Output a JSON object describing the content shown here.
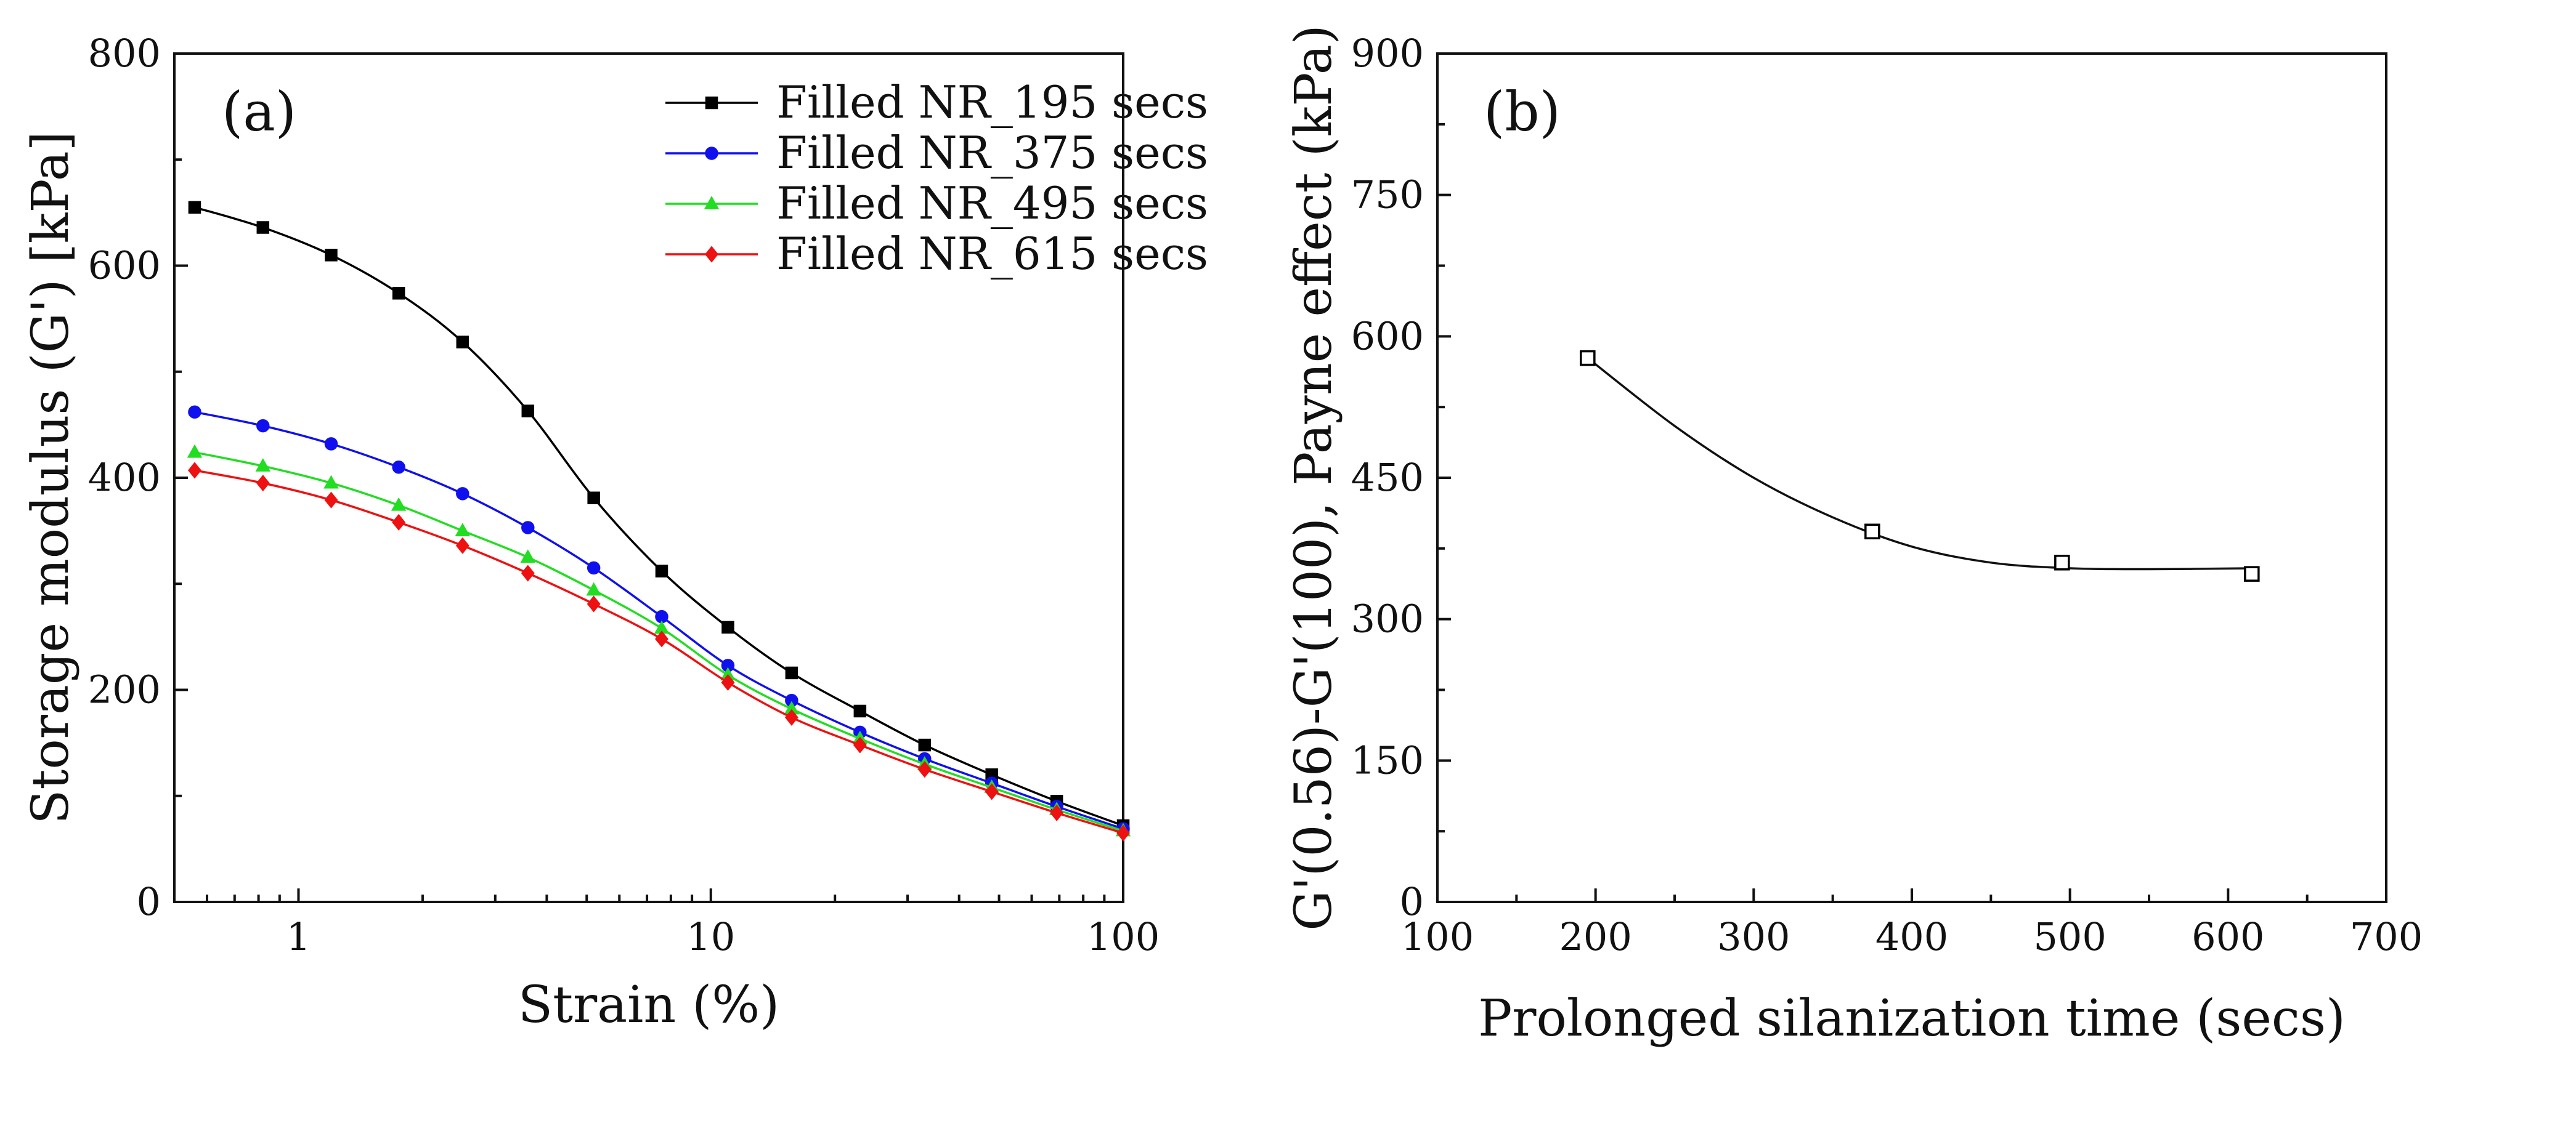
{
  "chart_data": [
    {
      "type": "line",
      "panel_label": "(a)",
      "xscale": "log",
      "xlabel": "Strain (%)",
      "ylabel": "Storage modulus (G') [kPa]",
      "xlim": [
        0.5,
        100
      ],
      "ylim": [
        0,
        800
      ],
      "xticks": [
        1,
        10,
        100
      ],
      "xtick_labels": [
        "1",
        "10",
        "100"
      ],
      "yticks": [
        0,
        200,
        400,
        600,
        800
      ],
      "ytick_labels": [
        "0",
        "200",
        "400",
        "600",
        "800"
      ],
      "legend_position": "top-right",
      "x": [
        0.56,
        0.82,
        1.2,
        1.75,
        2.5,
        3.6,
        5.2,
        7.6,
        11,
        15.7,
        23,
        33,
        48,
        69,
        100
      ],
      "series": [
        {
          "name": "Filled NR_195 secs",
          "color": "#000000",
          "marker": "square",
          "values": [
            655,
            636,
            610,
            574,
            528,
            463,
            381,
            312,
            259,
            216,
            180,
            148,
            120,
            95,
            72
          ]
        },
        {
          "name": "Filled NR_375 secs",
          "color": "#1010ee",
          "marker": "circle",
          "values": [
            462,
            449,
            432,
            410,
            385,
            353,
            315,
            269,
            223,
            190,
            160,
            135,
            112,
            90,
            69
          ]
        },
        {
          "name": "Filled NR_495 secs",
          "color": "#22dd22",
          "marker": "triangle",
          "values": [
            424,
            411,
            395,
            374,
            350,
            325,
            294,
            258,
            214,
            182,
            154,
            130,
            108,
            87,
            67
          ]
        },
        {
          "name": "Filled NR_615 secs",
          "color": "#ee1111",
          "marker": "diamond",
          "values": [
            407,
            395,
            379,
            358,
            336,
            310,
            281,
            248,
            207,
            174,
            148,
            125,
            104,
            84,
            65
          ]
        }
      ]
    },
    {
      "type": "scatter",
      "panel_label": "(b)",
      "xlabel": "Prolonged silanization time (secs)",
      "ylabel": "G'(0.56)-G'(100), Payne effect (kPa)",
      "xlim": [
        100,
        700
      ],
      "ylim": [
        0,
        900
      ],
      "xticks": [
        100,
        200,
        300,
        400,
        500,
        600,
        700
      ],
      "xtick_labels": [
        "100",
        "200",
        "300",
        "400",
        "500",
        "600",
        "700"
      ],
      "yticks": [
        0,
        150,
        300,
        450,
        600,
        750,
        900
      ],
      "ytick_labels": [
        "0",
        "150",
        "300",
        "450",
        "600",
        "750",
        "900"
      ],
      "series": [
        {
          "name": "Payne effect",
          "marker": "open-square",
          "color": "#000000",
          "x": [
            195,
            375,
            495,
            615
          ],
          "values": [
            577,
            393,
            360,
            348
          ]
        }
      ],
      "fit_curve": {
        "type": "smooth",
        "x": [
          195,
          250,
          300,
          350,
          400,
          450,
          500,
          550,
          615
        ],
        "values": [
          577,
          505,
          450,
          408,
          377,
          360,
          354,
          353,
          354
        ]
      }
    }
  ]
}
